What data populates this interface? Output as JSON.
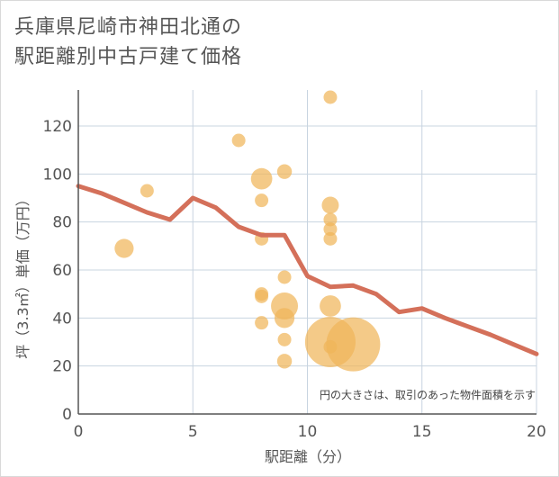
{
  "chart_data": {
    "type": "scatter",
    "title_lines": [
      "兵庫県尼崎市神田北通の",
      "駅距離別中古戸建て価格"
    ],
    "xlabel": "駅距離（分）",
    "ylabel": "坪（3.3㎡）単価（万円）",
    "xlim": [
      0,
      20
    ],
    "ylim": [
      0,
      135
    ],
    "x_ticks": [
      0,
      5,
      10,
      15,
      20
    ],
    "y_ticks": [
      0,
      20,
      40,
      60,
      80,
      100,
      120
    ],
    "grid": true,
    "note": "円の大きさは、取引のあった物件面積を示す",
    "colors": {
      "points": "#f0b55a",
      "line": "#d4705a",
      "grid": "#c8d4e0",
      "axis": "#555555"
    },
    "points": [
      {
        "x": 2,
        "y": 69,
        "size": 2
      },
      {
        "x": 3,
        "y": 93,
        "size": 1
      },
      {
        "x": 7,
        "y": 114,
        "size": 1
      },
      {
        "x": 8,
        "y": 98,
        "size": 2.5
      },
      {
        "x": 8,
        "y": 89,
        "size": 1
      },
      {
        "x": 8,
        "y": 73,
        "size": 1
      },
      {
        "x": 8,
        "y": 50,
        "size": 1
      },
      {
        "x": 8,
        "y": 49,
        "size": 1
      },
      {
        "x": 8,
        "y": 38,
        "size": 1
      },
      {
        "x": 9,
        "y": 101,
        "size": 1.2
      },
      {
        "x": 9,
        "y": 57,
        "size": 1
      },
      {
        "x": 9,
        "y": 45,
        "size": 4
      },
      {
        "x": 9,
        "y": 40,
        "size": 2.2
      },
      {
        "x": 9,
        "y": 31,
        "size": 1
      },
      {
        "x": 9,
        "y": 22,
        "size": 1.2
      },
      {
        "x": 11,
        "y": 132,
        "size": 1
      },
      {
        "x": 11,
        "y": 87,
        "size": 1.6
      },
      {
        "x": 11,
        "y": 81,
        "size": 1
      },
      {
        "x": 11,
        "y": 77,
        "size": 1
      },
      {
        "x": 11,
        "y": 73,
        "size": 1
      },
      {
        "x": 11,
        "y": 45,
        "size": 2.5
      },
      {
        "x": 11,
        "y": 30,
        "size": 14
      },
      {
        "x": 11,
        "y": 28,
        "size": 1
      },
      {
        "x": 12,
        "y": 29,
        "size": 16
      }
    ],
    "trend": {
      "x": [
        0,
        1,
        2,
        3,
        4,
        5,
        6,
        7,
        8,
        9,
        10,
        11,
        12,
        13,
        14,
        15,
        16,
        17,
        18,
        19,
        20
      ],
      "y": [
        95,
        92,
        88,
        84,
        81,
        90,
        86,
        78,
        74.5,
        74.5,
        57.5,
        53,
        53.5,
        50,
        42.5,
        44,
        40,
        36.5,
        33,
        29,
        25
      ]
    }
  }
}
